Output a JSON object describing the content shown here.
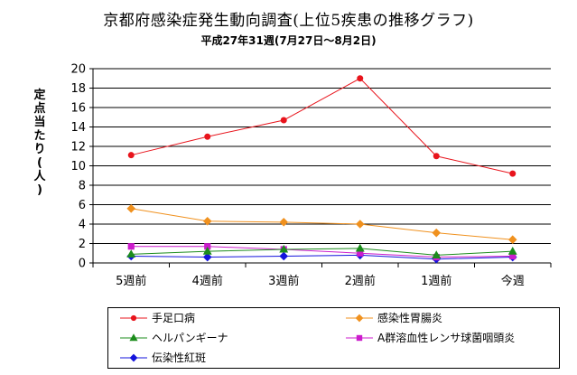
{
  "chart_data": {
    "type": "line",
    "title": "京都府感染症発生動向調査(上位5疾患の推移グラフ)",
    "subtitle": "平成27年31週(7月27日～8月2日)",
    "ylabel": "定点当たり(人)",
    "ylim": [
      0,
      20
    ],
    "yticks": [
      0,
      2,
      4,
      6,
      8,
      10,
      12,
      14,
      16,
      18,
      20
    ],
    "categories": [
      "5週前",
      "4週前",
      "3週前",
      "2週前",
      "1週前",
      "今週"
    ],
    "grid": true,
    "legend_position": "bottom",
    "series": [
      {
        "name": "手足口病",
        "color": "#e8141c",
        "marker": "circle",
        "values": [
          11.1,
          13.0,
          14.7,
          19.0,
          11.0,
          9.2
        ]
      },
      {
        "name": "感染性胃腸炎",
        "color": "#f0911e",
        "marker": "diamond",
        "values": [
          5.6,
          4.3,
          4.2,
          4.0,
          3.1,
          2.4
        ]
      },
      {
        "name": "ヘルパンギーナ",
        "color": "#1c8c1c",
        "marker": "triangle",
        "values": [
          0.9,
          1.2,
          1.4,
          1.5,
          0.8,
          1.2
        ]
      },
      {
        "name": "A群溶血性レンサ球菌咽頭炎",
        "color": "#cc1ccc",
        "marker": "square",
        "values": [
          1.7,
          1.7,
          1.4,
          1.0,
          0.6,
          0.7
        ]
      },
      {
        "name": "伝染性紅斑",
        "color": "#1414dc",
        "marker": "diamond",
        "values": [
          0.7,
          0.6,
          0.7,
          0.8,
          0.4,
          0.6
        ]
      }
    ]
  }
}
